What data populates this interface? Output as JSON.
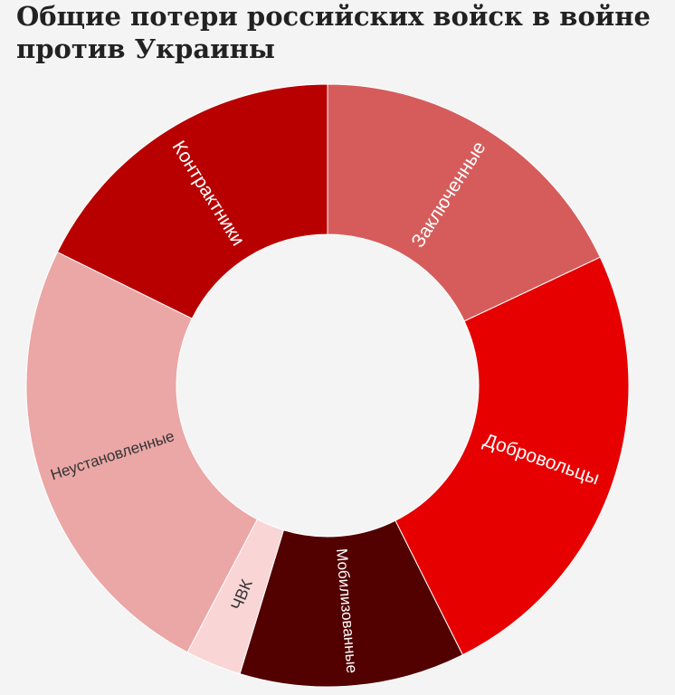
{
  "colors": {
    "background": "#f4f4f4",
    "title_text": "#222222"
  },
  "chart_data": {
    "type": "pie",
    "variant": "donut",
    "title": "Общие потери российских войск в войне против Украины",
    "unit": "share of total losses (%)",
    "slices": [
      {
        "label": "Заключенные",
        "value": 18.0,
        "color": "#d65c5c",
        "label_color": "#ffffff"
      },
      {
        "label": "Добровольцы",
        "value": 24.6,
        "color": "#e60000",
        "label_color": "#ffffff"
      },
      {
        "label": "Мобилизованные",
        "value": 12.1,
        "color": "#520000",
        "label_color": "#ffffff"
      },
      {
        "label": "ЧВК",
        "value": 3.0,
        "color": "#f9d5d5",
        "label_color": "#333333"
      },
      {
        "label": "Неустановленные",
        "value": 24.6,
        "color": "#eba6a6",
        "label_color": "#333333"
      },
      {
        "label": "Контрактники",
        "value": 17.7,
        "color": "#b80000",
        "label_color": "#ffffff"
      }
    ],
    "legend": "none",
    "labels": "inside-segments"
  }
}
